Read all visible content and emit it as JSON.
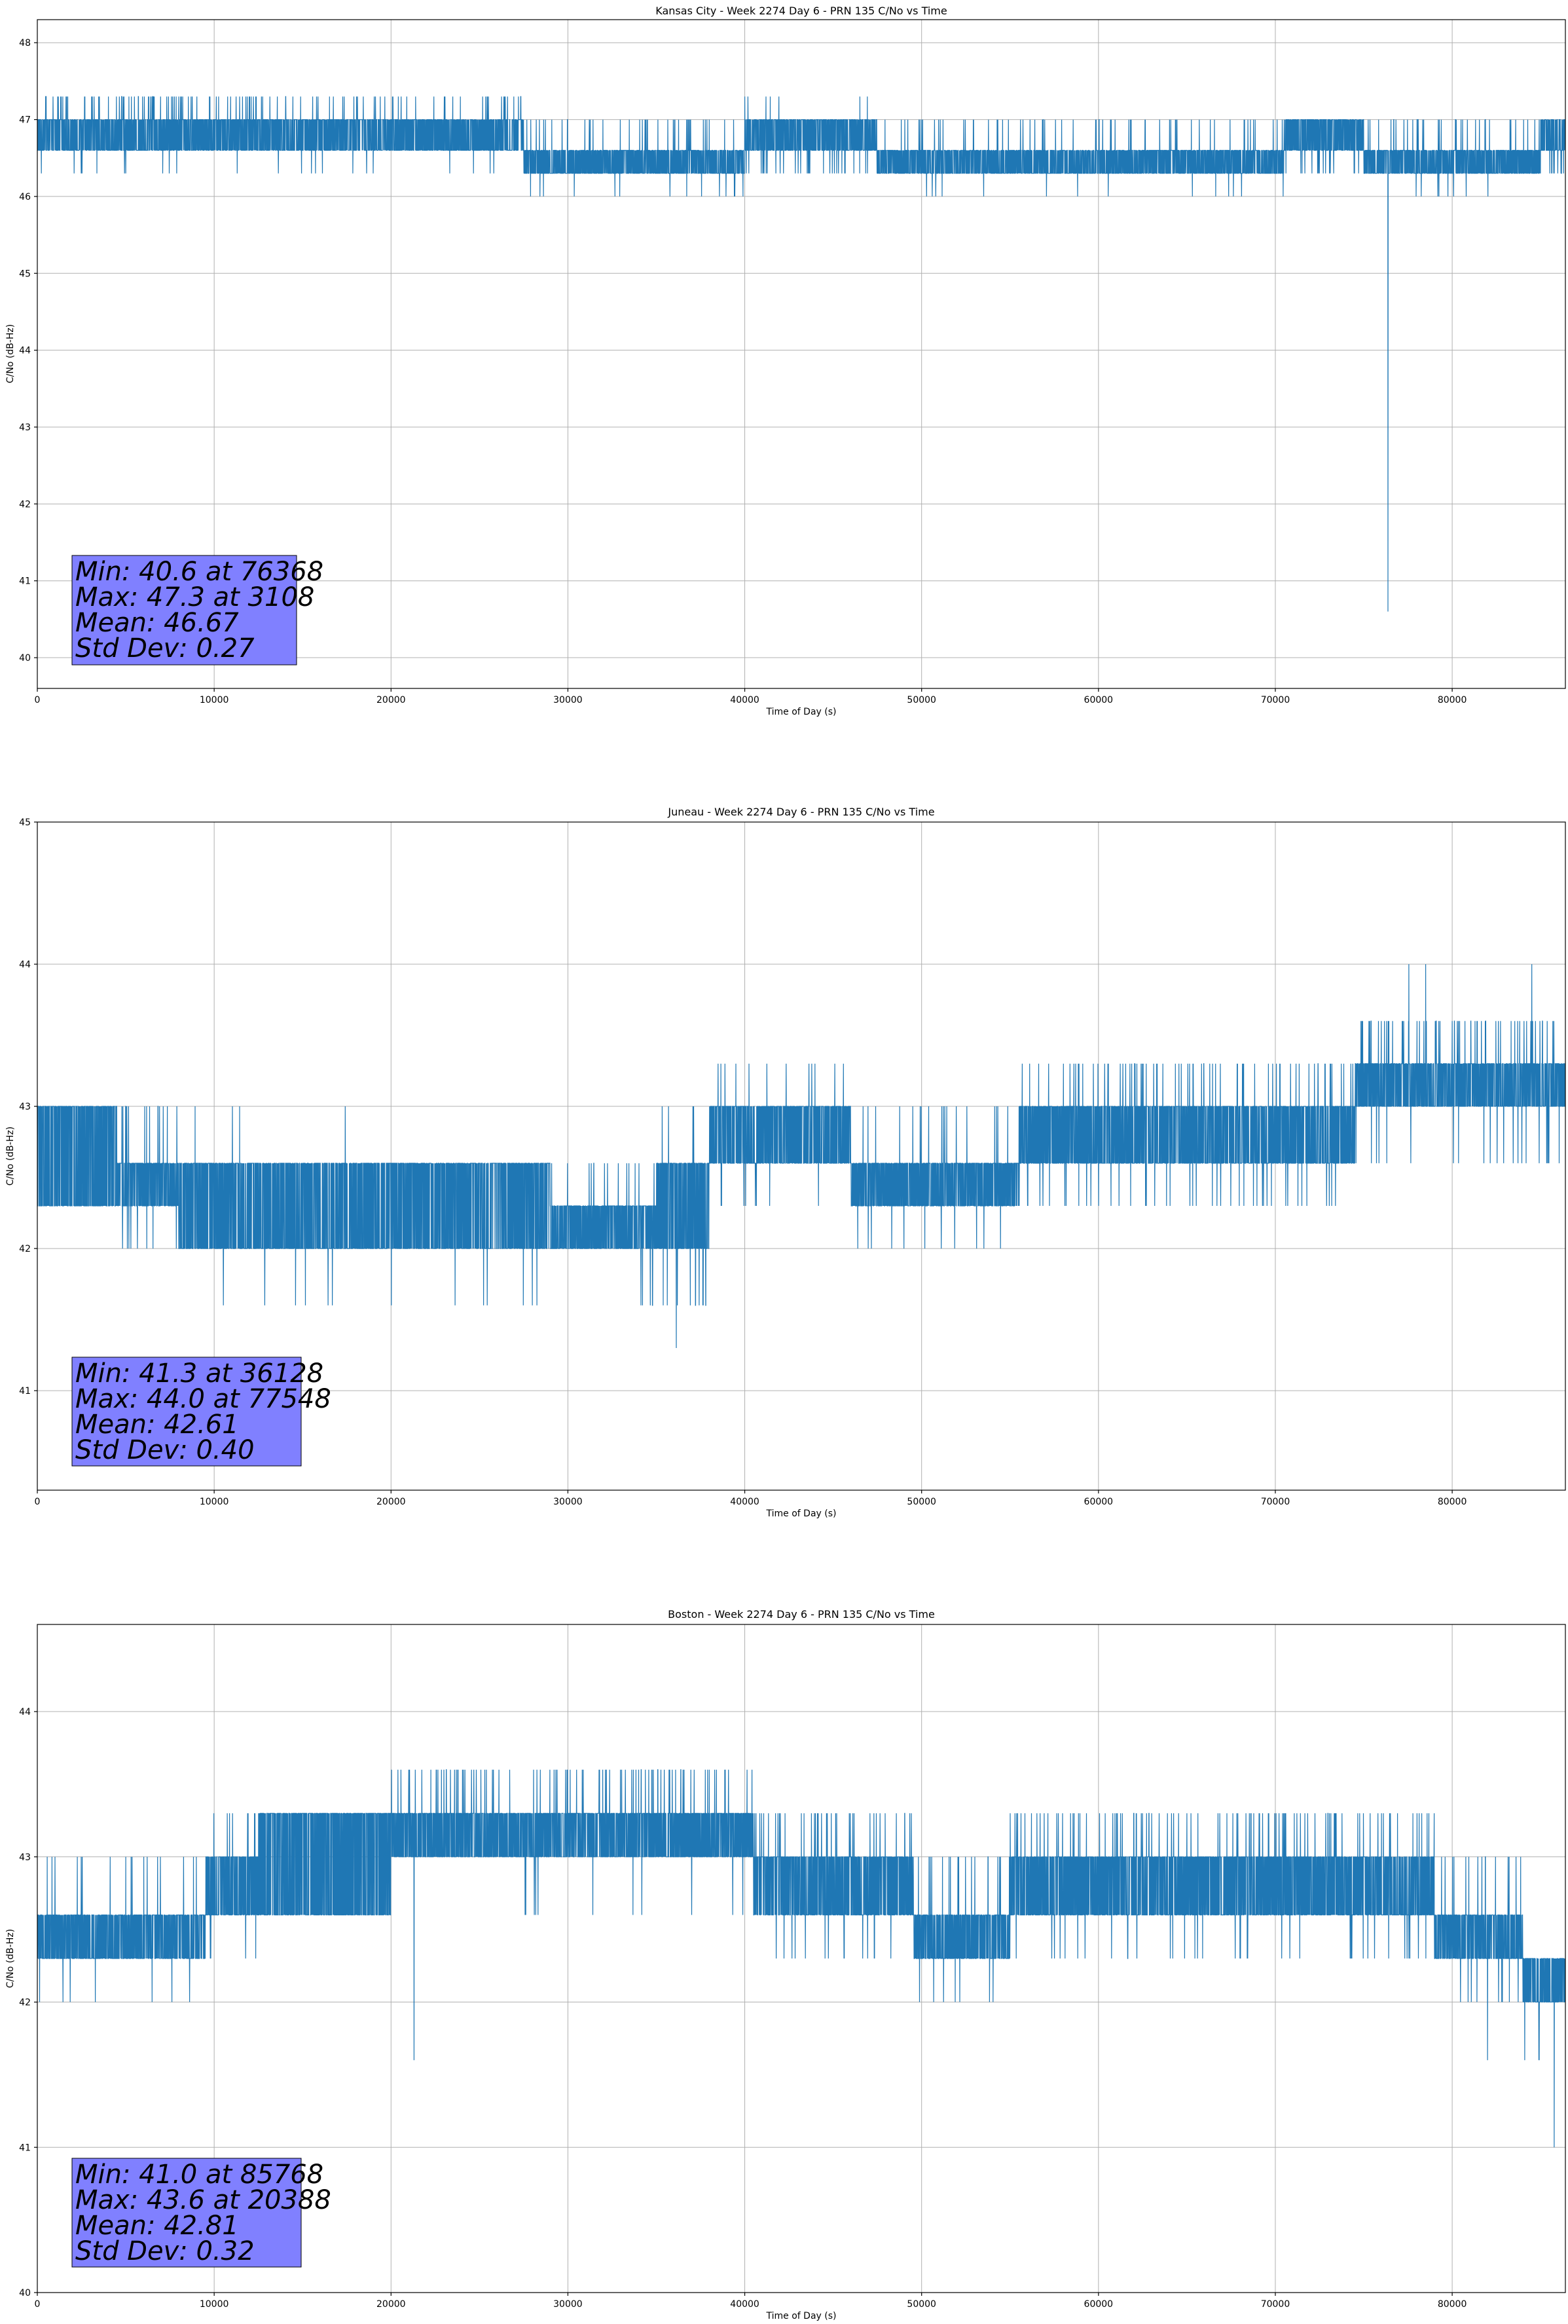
{
  "colors": {
    "series": "#1f77b4",
    "stats_box": "#8080ff",
    "grid": "#b0b0b0"
  },
  "chart_data": [
    {
      "type": "line",
      "title": "Kansas City - Week 2274 Day 6 - PRN 135 C/No vs Time",
      "xlabel": "Time of Day (s)",
      "ylabel": "C/No (dB-Hz)",
      "xlim": [
        0,
        86400
      ],
      "ylim": [
        39.6,
        48.3
      ],
      "xticks": [
        0,
        10000,
        20000,
        30000,
        40000,
        50000,
        60000,
        70000,
        80000
      ],
      "yticks": [
        40,
        41,
        42,
        43,
        44,
        45,
        46,
        47,
        48
      ],
      "grid": true,
      "stats": [
        "Min: 40.6 at 76368",
        "Max: 47.3 at 3108",
        "Mean: 46.67",
        "Std Dev: 0.27"
      ],
      "series": [
        {
          "segments": [
            {
              "x0": 0,
              "x1": 12500,
              "lo": 46.6,
              "hi": 47.0,
              "loOut": 46.3,
              "hiOut": 47.3,
              "spikeUp": 0.5,
              "spikeDown": 0.08
            },
            {
              "x0": 12500,
              "x1": 27500,
              "lo": 46.6,
              "hi": 47.0,
              "loOut": 46.3,
              "hiOut": 47.3,
              "spikeUp": 0.25,
              "spikeDown": 0.08
            },
            {
              "x0": 27500,
              "x1": 40000,
              "lo": 46.3,
              "hi": 46.6,
              "loOut": 46.0,
              "hiOut": 47.0,
              "spikeUp": 0.35,
              "spikeDown": 0.08
            },
            {
              "x0": 40000,
              "x1": 47500,
              "lo": 46.6,
              "hi": 47.0,
              "loOut": 46.3,
              "hiOut": 47.3,
              "spikeUp": 0.05,
              "spikeDown": 0.4
            },
            {
              "x0": 47500,
              "x1": 70500,
              "lo": 46.3,
              "hi": 46.6,
              "loOut": 46.0,
              "hiOut": 47.0,
              "spikeUp": 0.2,
              "spikeDown": 0.05
            },
            {
              "x0": 70500,
              "x1": 75000,
              "lo": 46.6,
              "hi": 47.0,
              "loOut": 46.3,
              "hiOut": 47.0,
              "spikeUp": 0.05,
              "spikeDown": 0.3
            },
            {
              "x0": 75000,
              "x1": 85000,
              "lo": 46.3,
              "hi": 46.6,
              "loOut": 46.0,
              "hiOut": 47.0,
              "spikeUp": 0.3,
              "spikeDown": 0.05
            },
            {
              "x0": 85000,
              "x1": 86400,
              "lo": 46.6,
              "hi": 47.0,
              "loOut": 46.3,
              "hiOut": 47.0,
              "spikeUp": 0.05,
              "spikeDown": 0.3
            }
          ],
          "extremes": [
            {
              "x": 76368,
              "y": 40.6
            },
            {
              "x": 3108,
              "y": 47.3
            },
            {
              "x": 40000,
              "y": 47.3
            }
          ]
        }
      ]
    },
    {
      "type": "line",
      "title": "Juneau - Week 2274 Day 6 - PRN 135 C/No vs Time",
      "xlabel": "Time of Day (s)",
      "ylabel": "C/No (dB-Hz)",
      "xlim": [
        0,
        86400
      ],
      "ylim": [
        40.3,
        45.0
      ],
      "xticks": [
        0,
        10000,
        20000,
        30000,
        40000,
        50000,
        60000,
        70000,
        80000
      ],
      "yticks": [
        41,
        42,
        43,
        44,
        45
      ],
      "grid": true,
      "stats": [
        "Min: 41.3 at 36128",
        "Max: 44.0 at 77548",
        "Mean: 42.61",
        "Std Dev: 0.40"
      ],
      "series": [
        {
          "segments": [
            {
              "x0": 0,
              "x1": 4500,
              "lo": 42.3,
              "hi": 43.0,
              "loOut": 42.0,
              "hiOut": 43.0,
              "spikeUp": 0.05,
              "spikeDown": 0.05
            },
            {
              "x0": 4500,
              "x1": 8000,
              "lo": 42.3,
              "hi": 42.6,
              "loOut": 42.0,
              "hiOut": 43.0,
              "spikeUp": 0.25,
              "spikeDown": 0.1
            },
            {
              "x0": 8000,
              "x1": 19500,
              "lo": 42.0,
              "hi": 42.6,
              "loOut": 41.6,
              "hiOut": 43.0,
              "spikeUp": 0.04,
              "spikeDown": 0.08
            },
            {
              "x0": 19500,
              "x1": 29000,
              "lo": 42.0,
              "hi": 42.6,
              "loOut": 41.6,
              "hiOut": 42.6,
              "spikeUp": 0.02,
              "spikeDown": 0.1
            },
            {
              "x0": 29000,
              "x1": 35000,
              "lo": 42.0,
              "hi": 42.3,
              "loOut": 41.6,
              "hiOut": 42.6,
              "spikeUp": 0.2,
              "spikeDown": 0.1
            },
            {
              "x0": 35000,
              "x1": 38000,
              "lo": 42.0,
              "hi": 42.6,
              "loOut": 41.6,
              "hiOut": 43.0,
              "spikeUp": 0.1,
              "spikeDown": 0.35
            },
            {
              "x0": 38000,
              "x1": 46000,
              "lo": 42.6,
              "hi": 43.0,
              "loOut": 42.3,
              "hiOut": 43.3,
              "spikeUp": 0.15,
              "spikeDown": 0.1
            },
            {
              "x0": 46000,
              "x1": 55500,
              "lo": 42.3,
              "hi": 42.6,
              "loOut": 42.0,
              "hiOut": 43.0,
              "spikeUp": 0.15,
              "spikeDown": 0.15
            },
            {
              "x0": 55500,
              "x1": 74500,
              "lo": 42.6,
              "hi": 43.0,
              "loOut": 42.3,
              "hiOut": 43.3,
              "spikeUp": 0.3,
              "spikeDown": 0.15
            },
            {
              "x0": 74500,
              "x1": 86400,
              "lo": 43.0,
              "hi": 43.3,
              "loOut": 42.6,
              "hiOut": 43.6,
              "spikeUp": 0.45,
              "spikeDown": 0.1
            }
          ],
          "extremes": [
            {
              "x": 36128,
              "y": 41.3
            },
            {
              "x": 77548,
              "y": 44.0
            },
            {
              "x": 78500,
              "y": 44.0
            },
            {
              "x": 84500,
              "y": 44.0
            }
          ]
        }
      ]
    },
    {
      "type": "line",
      "title": "Boston - Week 2274 Day 6 - PRN 135 C/No vs Time",
      "xlabel": "Time of Day (s)",
      "ylabel": "C/No (dB-Hz)",
      "xlim": [
        0,
        86400
      ],
      "ylim": [
        40.0,
        44.6
      ],
      "xticks": [
        0,
        10000,
        20000,
        30000,
        40000,
        50000,
        60000,
        70000,
        80000
      ],
      "yticks": [
        40,
        41,
        42,
        43,
        44
      ],
      "grid": true,
      "stats": [
        "Min: 41.0 at 85768",
        "Max: 43.6 at 20388",
        "Mean: 42.81",
        "Std Dev: 0.32"
      ],
      "series": [
        {
          "segments": [
            {
              "x0": 0,
              "x1": 9500,
              "lo": 42.3,
              "hi": 42.6,
              "loOut": 42.0,
              "hiOut": 43.0,
              "spikeUp": 0.12,
              "spikeDown": 0.04
            },
            {
              "x0": 9500,
              "x1": 12500,
              "lo": 42.6,
              "hi": 43.0,
              "loOut": 42.3,
              "hiOut": 43.3,
              "spikeUp": 0.2,
              "spikeDown": 0.1
            },
            {
              "x0": 12500,
              "x1": 20000,
              "lo": 42.6,
              "hi": 43.3,
              "loOut": 42.6,
              "hiOut": 43.3,
              "spikeUp": 0.2,
              "spikeDown": 0.05
            },
            {
              "x0": 20000,
              "x1": 40500,
              "lo": 43.0,
              "hi": 43.3,
              "loOut": 42.6,
              "hiOut": 43.6,
              "spikeUp": 0.35,
              "spikeDown": 0.04
            },
            {
              "x0": 40500,
              "x1": 49500,
              "lo": 42.6,
              "hi": 43.0,
              "loOut": 42.3,
              "hiOut": 43.3,
              "spikeUp": 0.3,
              "spikeDown": 0.15
            },
            {
              "x0": 49500,
              "x1": 55000,
              "lo": 42.3,
              "hi": 42.6,
              "loOut": 42.0,
              "hiOut": 43.0,
              "spikeUp": 0.25,
              "spikeDown": 0.12
            },
            {
              "x0": 55000,
              "x1": 79000,
              "lo": 42.6,
              "hi": 43.0,
              "loOut": 42.3,
              "hiOut": 43.3,
              "spikeUp": 0.35,
              "spikeDown": 0.12
            },
            {
              "x0": 79000,
              "x1": 84000,
              "lo": 42.3,
              "hi": 42.6,
              "loOut": 42.0,
              "hiOut": 43.0,
              "spikeUp": 0.2,
              "spikeDown": 0.25
            },
            {
              "x0": 84000,
              "x1": 86400,
              "lo": 42.0,
              "hi": 42.3,
              "loOut": 41.6,
              "hiOut": 42.6,
              "spikeUp": 0.05,
              "spikeDown": 0.3
            }
          ],
          "extremes": [
            {
              "x": 85768,
              "y": 41.0
            },
            {
              "x": 20388,
              "y": 43.6
            },
            {
              "x": 21300,
              "y": 41.6
            },
            {
              "x": 38900,
              "y": 43.6
            },
            {
              "x": 82000,
              "y": 41.6
            }
          ]
        }
      ]
    }
  ]
}
